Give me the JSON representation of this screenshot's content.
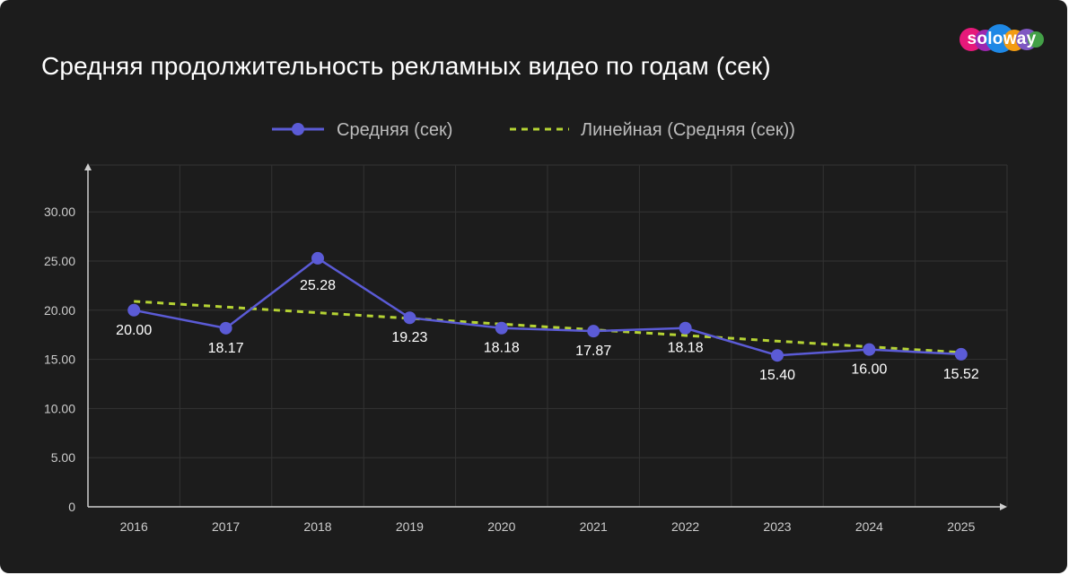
{
  "logo": {
    "text": "soloway",
    "colors": [
      "#e6197a",
      "#f39c12",
      "#1e88e5",
      "#7e57c2",
      "#43a047"
    ]
  },
  "chart_data": {
    "type": "line",
    "title": "Средняя продолжительность рекламных видео по годам (сек)",
    "categories": [
      "2016",
      "2017",
      "2018",
      "2019",
      "2020",
      "2021",
      "2022",
      "2023",
      "2024",
      "2025"
    ],
    "series": [
      {
        "name": "Средняя (сек)",
        "values": [
          20.0,
          18.17,
          25.28,
          19.23,
          18.18,
          17.87,
          18.18,
          15.4,
          16.0,
          15.52
        ],
        "labels": [
          "20.00",
          "18.17",
          "25.28",
          "19.23",
          "18.18",
          "17.87",
          "18.18",
          "15.40",
          "16.00",
          "15.52"
        ],
        "color": "#5b5bd6"
      },
      {
        "name": "Линейная (Средняя (сек))",
        "style": "dashed-trendline",
        "start": 20.9,
        "end": 15.7,
        "color": "#b5d334"
      }
    ],
    "yticks": [
      "0",
      "5.00",
      "10.00",
      "15.00",
      "20.00",
      "25.00",
      "30.00"
    ],
    "ylim": [
      0,
      33.5
    ],
    "grid": true,
    "legend_position": "top-center",
    "background": "#1c1c1c",
    "text_color": "#ffffff",
    "axis_label_color": "#cccccc"
  }
}
